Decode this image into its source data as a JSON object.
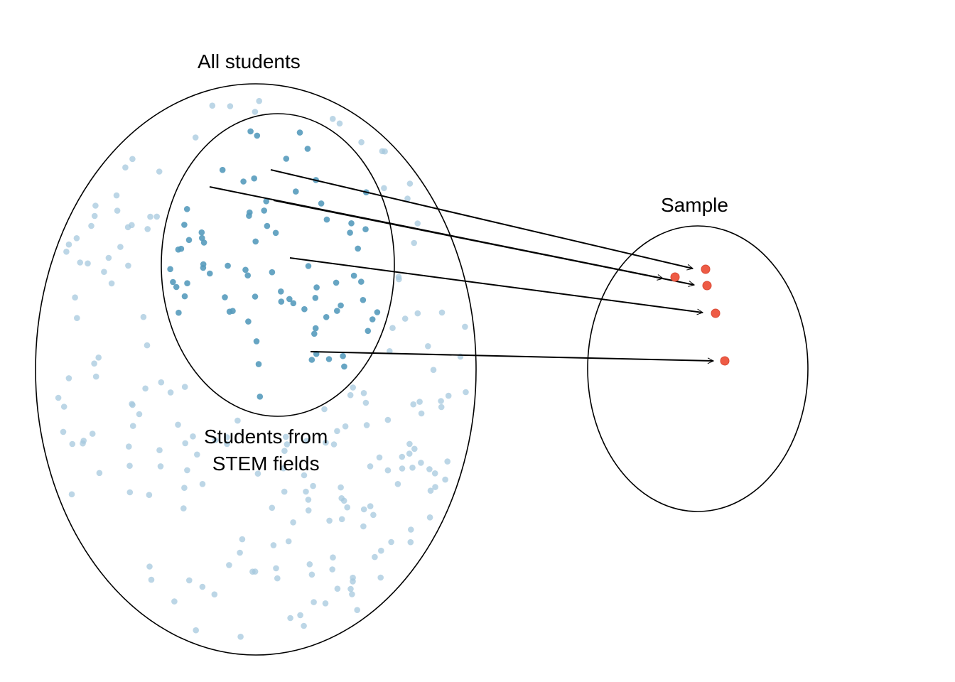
{
  "labels": {
    "all_students": "All students",
    "stem_line1": "Students from",
    "stem_line2": "STEM fields",
    "sample": "Sample"
  },
  "colors": {
    "population_point": "#a6c8de",
    "stem_point": "#569bbd",
    "sample_point": "#ee5b45",
    "outline": "#000000"
  }
}
